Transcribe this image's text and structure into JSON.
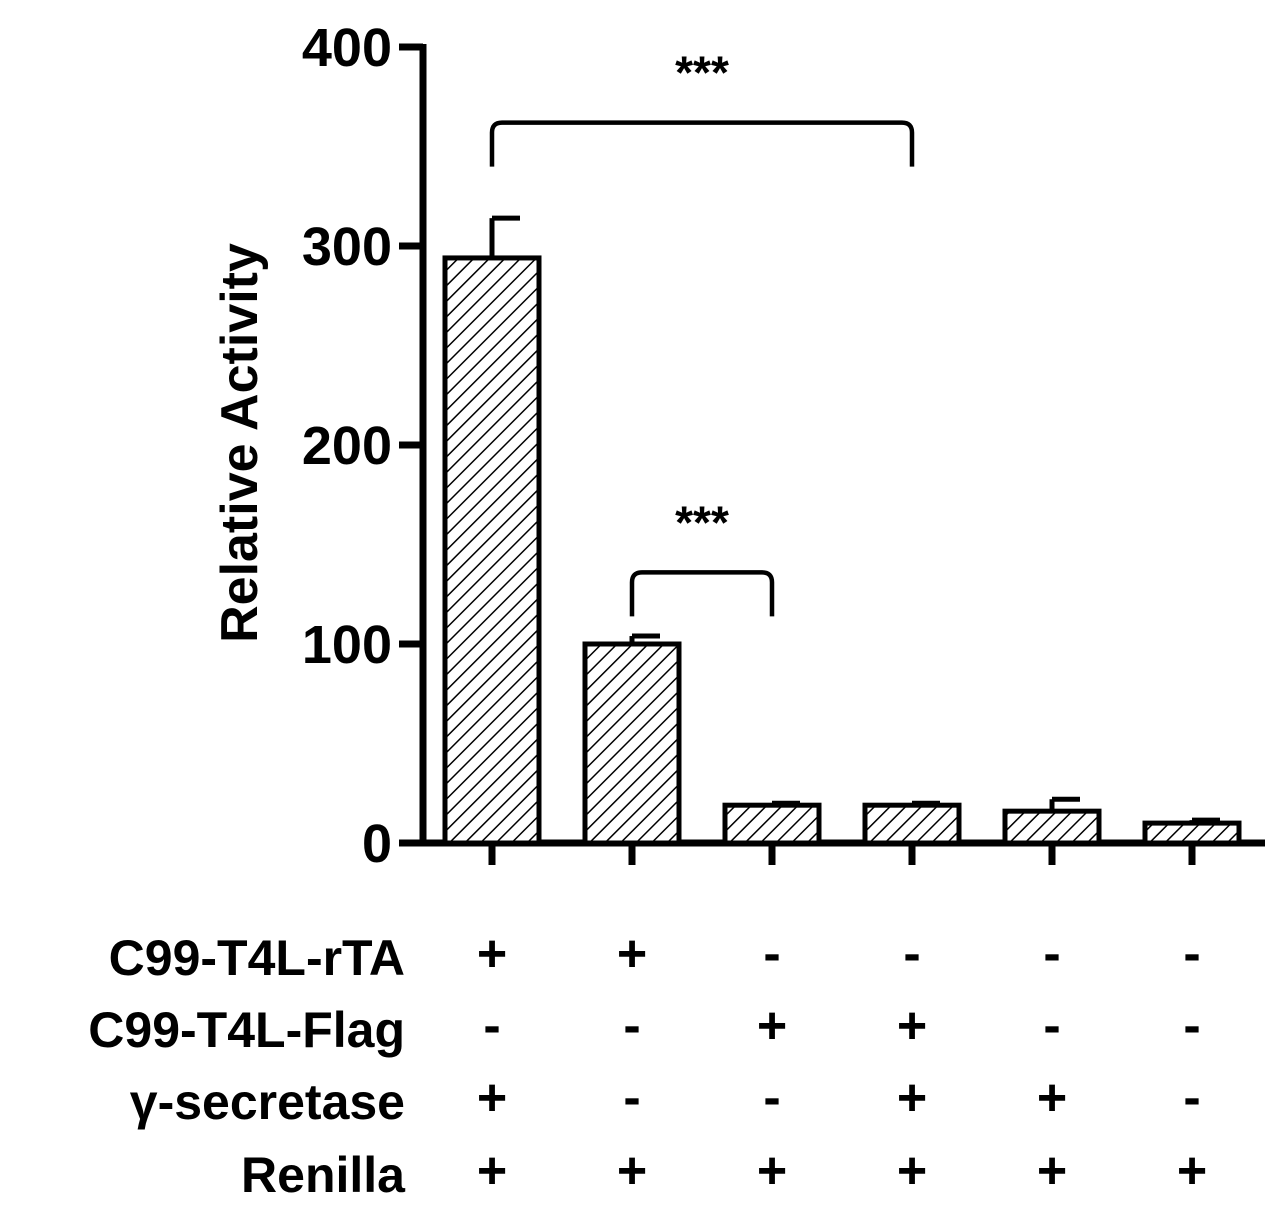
{
  "chart_data": {
    "type": "bar",
    "ylabel": "Relative Activity",
    "ylim": [
      0,
      400
    ],
    "yticks": [
      "0",
      "100",
      "200",
      "300",
      "400"
    ],
    "grid": false,
    "pattern": "diagonal-hatch",
    "colors": {
      "stroke": "#000000",
      "fill": "#ffffff"
    },
    "values": [
      294,
      100,
      19,
      19,
      16,
      10
    ],
    "errors": [
      20,
      4,
      1,
      1,
      6,
      1.5
    ],
    "significance": [
      {
        "from": 0,
        "to": 3,
        "label": "***",
        "y": 362
      },
      {
        "from": 1,
        "to": 2,
        "label": "***",
        "y": 136
      }
    ],
    "conditions": [
      {
        "name": "C99-T4L-rTA",
        "signs": [
          "+",
          "+",
          "-",
          "-",
          "-",
          "-"
        ]
      },
      {
        "name": "C99-T4L-Flag",
        "signs": [
          "-",
          "-",
          "+",
          "+",
          "-",
          "-"
        ]
      },
      {
        "name": "γ-secretase",
        "signs": [
          "+",
          "-",
          "-",
          "+",
          "+",
          "-"
        ]
      },
      {
        "name": "Renilla",
        "signs": [
          "+",
          "+",
          "+",
          "+",
          "+",
          "+"
        ]
      }
    ]
  }
}
